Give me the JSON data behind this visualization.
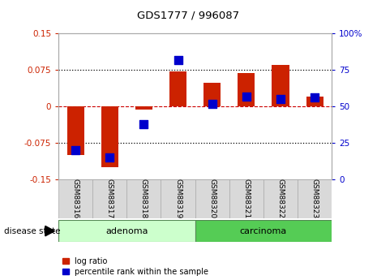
{
  "title": "GDS1777 / 996087",
  "samples": [
    "GSM88316",
    "GSM88317",
    "GSM88318",
    "GSM88319",
    "GSM88320",
    "GSM88321",
    "GSM88322",
    "GSM88323"
  ],
  "log_ratio": [
    -0.1,
    -0.125,
    -0.007,
    0.072,
    0.048,
    0.068,
    0.085,
    0.02
  ],
  "percentile_rank": [
    20,
    15,
    38,
    82,
    52,
    57,
    55,
    56
  ],
  "groups": [
    {
      "label": "adenoma",
      "samples": [
        0,
        1,
        2,
        3
      ],
      "color": "#ccffcc"
    },
    {
      "label": "carcinoma",
      "samples": [
        4,
        5,
        6,
        7
      ],
      "color": "#55cc55"
    }
  ],
  "group_label_prefix": "disease state",
  "ylim_left": [
    -0.15,
    0.15
  ],
  "ylim_right": [
    0,
    100
  ],
  "yticks_left": [
    -0.15,
    -0.075,
    0,
    0.075,
    0.15
  ],
  "yticks_right": [
    0,
    25,
    50,
    75,
    100
  ],
  "bar_color": "#cc2200",
  "point_color": "#0000cc",
  "bar_width": 0.5,
  "point_size": 45,
  "background_color": "#ffffff",
  "plot_bg_color": "#ffffff",
  "tick_label_color_left": "#cc2200",
  "tick_label_color_right": "#0000cc",
  "zero_line_color": "#cc0000",
  "dotted_line_color": "#000000",
  "sample_box_color": "#d9d9d9",
  "sample_box_edge": "#aaaaaa",
  "legend_entries": [
    "log ratio",
    "percentile rank within the sample"
  ]
}
